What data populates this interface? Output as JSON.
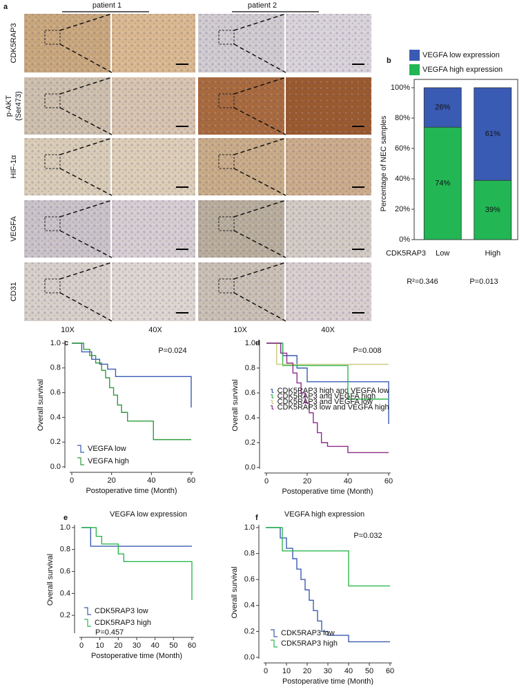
{
  "panel_a": {
    "label": "a",
    "patients": [
      "patient 1",
      "patient 2"
    ],
    "rows": [
      {
        "lines": [
          "CDK5RAP3"
        ]
      },
      {
        "lines": [
          "p-AKT",
          "(Ser473)"
        ]
      },
      {
        "lines": [
          "HIF-1α"
        ]
      },
      {
        "lines": [
          "VEGFA"
        ]
      },
      {
        "lines": [
          "CD31"
        ]
      }
    ],
    "magnifications": [
      "10X",
      "40X",
      "10X",
      "40X"
    ]
  },
  "chart_data": [
    {
      "type": "bar",
      "stacked": true,
      "panel_label": "b",
      "ylabel": "Percentage of NEC samples",
      "xlabel": "CDK5RAP3",
      "categories": [
        "Low",
        "High"
      ],
      "series": [
        {
          "name": "VEGFA low expression",
          "color": "#3a5bb3",
          "values": [
            26,
            61
          ],
          "value_labels": [
            "26%",
            "61%"
          ]
        },
        {
          "name": "VEGFA high expression",
          "color": "#22b655",
          "values": [
            74,
            39
          ],
          "value_labels": [
            "74%",
            "39%"
          ]
        }
      ],
      "ylim": [
        0,
        100
      ],
      "yticks": [
        {
          "value": 0,
          "label": "0%"
        },
        {
          "value": 20,
          "label": "20%"
        },
        {
          "value": 40,
          "label": "40%"
        },
        {
          "value": 60,
          "label": "60%"
        },
        {
          "value": 80,
          "label": "80%"
        },
        {
          "value": 100,
          "label": "100%"
        }
      ],
      "annotations": [
        "R²=0.346",
        "P=0.013"
      ]
    },
    {
      "type": "line",
      "step": true,
      "panel_label": "c",
      "xlabel": "Postoperative time (Month)",
      "ylabel": "Overall survival",
      "annotations": [
        "P=0.024"
      ],
      "series": [
        {
          "name": "VEGFA low",
          "color": "#3a5bb3",
          "x": [
            0,
            5,
            10,
            14,
            18,
            22,
            60
          ],
          "values": [
            1.0,
            0.93,
            0.87,
            0.83,
            0.79,
            0.73,
            0.48
          ]
        },
        {
          "name": "VEGFA high",
          "color": "#2e9a3a",
          "x": [
            0,
            6,
            9,
            12,
            15,
            17,
            19,
            21,
            23,
            25,
            28,
            41,
            60
          ],
          "values": [
            1.0,
            0.95,
            0.9,
            0.84,
            0.78,
            0.72,
            0.64,
            0.58,
            0.5,
            0.44,
            0.37,
            0.22,
            0.22
          ]
        }
      ],
      "xlim": [
        0,
        60
      ],
      "xticks": [
        0,
        20,
        40,
        60
      ],
      "ylim": [
        0,
        1
      ],
      "yticks": [
        {
          "value": 0,
          "label": "0.0"
        },
        0.2,
        0.4,
        0.6,
        0.8,
        {
          "value": 1,
          "label": "1.0"
        }
      ]
    },
    {
      "type": "line",
      "step": true,
      "panel_label": "d",
      "xlabel": "Postoperative time (Month)",
      "ylabel": "Overall survival",
      "annotations": [
        "P=0.008"
      ],
      "series": [
        {
          "name": "CDK5RAP3 high and VEGFA low",
          "color": "#3a5bb3",
          "x": [
            0,
            8,
            15,
            20,
            60
          ],
          "values": [
            1.0,
            0.9,
            0.8,
            0.69,
            0.35
          ]
        },
        {
          "name": "CDK5RAP3 and VEGFA high",
          "color": "#2db84d",
          "x": [
            0,
            8,
            40,
            60
          ],
          "values": [
            1.0,
            0.82,
            0.55,
            0.55
          ]
        },
        {
          "name": "CDK5RAP3 and VEGFA low",
          "color": "#c8c87a",
          "x": [
            0,
            5,
            60
          ],
          "values": [
            1.0,
            0.83,
            0.83
          ]
        },
        {
          "name": "CDK5RAP3 low and VEGFA high",
          "color": "#8b2a8b",
          "x": [
            0,
            7,
            10,
            13,
            15,
            17,
            19,
            21,
            23,
            25,
            27,
            30,
            40,
            60
          ],
          "values": [
            1.0,
            0.92,
            0.84,
            0.76,
            0.68,
            0.6,
            0.52,
            0.44,
            0.36,
            0.28,
            0.2,
            0.17,
            0.12,
            0.12
          ]
        }
      ],
      "xlim": [
        0,
        60
      ],
      "xticks": [
        0,
        20,
        40,
        60
      ],
      "ylim": [
        0,
        1
      ],
      "yticks": [
        {
          "value": 0,
          "label": "0.0"
        },
        0.2,
        0.4,
        0.6,
        0.8,
        {
          "value": 1,
          "label": "1.0"
        }
      ]
    },
    {
      "type": "line",
      "step": true,
      "panel_label": "e",
      "title": "VEGFA low expression",
      "xlabel": "Postoperative time (Month)",
      "ylabel": "Overall survival",
      "annotations": [
        "P=0.457"
      ],
      "series": [
        {
          "name": "CDK5RAP3 low",
          "color": "#3a5bb3",
          "x": [
            0,
            5,
            60
          ],
          "values": [
            1.0,
            0.83,
            0.83
          ]
        },
        {
          "name": "CDK5RAP3 high",
          "color": "#2db84d",
          "x": [
            0,
            8,
            11,
            20,
            23,
            60
          ],
          "values": [
            1.0,
            0.92,
            0.85,
            0.76,
            0.69,
            0.34
          ]
        }
      ],
      "xlim": [
        0,
        60
      ],
      "xticks": [
        0,
        10,
        20,
        30,
        40,
        50,
        60
      ],
      "ylim": [
        0.05,
        1
      ],
      "yticks": [
        0.2,
        0.4,
        0.6,
        0.8,
        {
          "value": 1,
          "label": "1.0"
        }
      ]
    },
    {
      "type": "line",
      "step": true,
      "panel_label": "f",
      "title": "VEGFA high expression",
      "xlabel": "Postoperative time (Month)",
      "ylabel": "Overall survival",
      "annotations": [
        "P=0.032"
      ],
      "series": [
        {
          "name": "CDK5RAP3 low",
          "color": "#3a5bb3",
          "x": [
            0,
            7,
            10,
            13,
            15,
            17,
            19,
            21,
            23,
            25,
            27,
            30,
            40,
            60
          ],
          "values": [
            1.0,
            0.92,
            0.84,
            0.76,
            0.68,
            0.6,
            0.52,
            0.44,
            0.36,
            0.28,
            0.2,
            0.17,
            0.12,
            0.12
          ]
        },
        {
          "name": "CDK5RAP3 high",
          "color": "#2db84d",
          "x": [
            0,
            8,
            40,
            60
          ],
          "values": [
            1.0,
            0.82,
            0.55,
            0.55
          ]
        }
      ],
      "xlim": [
        0,
        60
      ],
      "xticks": [
        0,
        10,
        20,
        30,
        40,
        50,
        60
      ],
      "ylim": [
        0,
        1
      ],
      "yticks": [
        {
          "value": 0,
          "label": "0.0"
        },
        0.2,
        0.4,
        0.6,
        0.8,
        {
          "value": 1,
          "label": "1.0"
        }
      ]
    }
  ]
}
